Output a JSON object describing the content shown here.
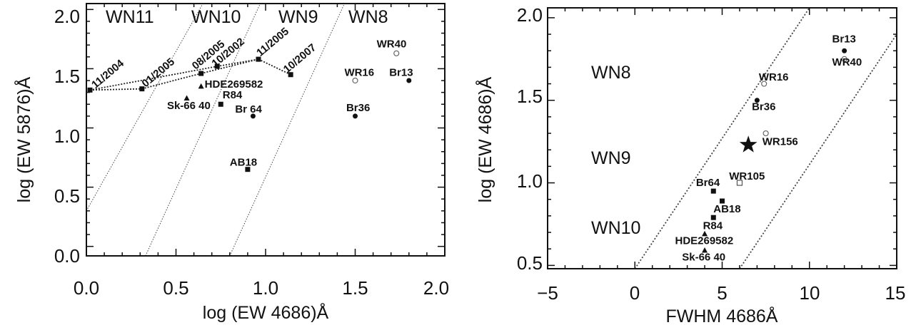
{
  "chart_data": [
    {
      "type": "scatter",
      "title": "",
      "xlabel": "log (EW 4686)Å",
      "ylabel": "log (EW 5876)Å",
      "xlim": [
        0.0,
        2.0
      ],
      "ylim": [
        -0.08,
        2.05
      ],
      "xticks": [
        "0.0",
        "0.5",
        "1.0",
        "1.5",
        "2.0"
      ],
      "yticks": [
        "0.0",
        "0.5",
        "1.0",
        "1.5",
        "2.0"
      ],
      "regions": [
        "WN11",
        "WN10",
        "WN9",
        "WN8"
      ],
      "boundaries": [
        {
          "x1": 0.0,
          "y1": 0.3,
          "x2": 0.65,
          "y2": 2.05
        },
        {
          "x1": 0.33,
          "y1": -0.08,
          "x2": 0.97,
          "y2": 2.05
        },
        {
          "x1": 0.8,
          "y1": -0.08,
          "x2": 1.44,
          "y2": 2.05
        }
      ],
      "points": [
        {
          "label": "WR40",
          "x": 1.73,
          "y": 1.63,
          "marker": "open-circle",
          "lx": 1.62,
          "ly": 1.68
        },
        {
          "label": "Br13",
          "x": 1.8,
          "y": 1.4,
          "marker": "circle",
          "lx": 1.69,
          "ly": 1.44
        },
        {
          "label": "WR16",
          "x": 1.5,
          "y": 1.4,
          "marker": "open-circle",
          "lx": 1.44,
          "ly": 1.44
        },
        {
          "label": "Br36",
          "x": 1.5,
          "y": 1.1,
          "marker": "circle",
          "lx": 1.45,
          "ly": 1.14
        },
        {
          "label": "Br 64",
          "x": 0.93,
          "y": 1.1,
          "marker": "circle",
          "lx": 0.83,
          "ly": 1.13
        },
        {
          "label": "R84",
          "x": 0.75,
          "y": 1.2,
          "marker": "square",
          "lx": 0.76,
          "ly": 1.25
        },
        {
          "label": "Sk-66 40",
          "x": 0.56,
          "y": 1.25,
          "marker": "triangle",
          "lx": 0.45,
          "ly": 1.16
        },
        {
          "label": "HDE269582",
          "x": 0.64,
          "y": 1.35,
          "marker": "triangle",
          "lx": 0.66,
          "ly": 1.34
        },
        {
          "label": "AB18",
          "x": 0.9,
          "y": 0.65,
          "marker": "square",
          "lx": 0.8,
          "ly": 0.68
        }
      ],
      "track": [
        {
          "label": "11/2004",
          "x": 0.02,
          "y": 1.32,
          "marker": "square",
          "lx": 0.05,
          "ly": 1.33
        },
        {
          "label": "01/2005",
          "x": 0.31,
          "y": 1.33,
          "marker": "square",
          "lx": 0.33,
          "ly": 1.34
        },
        {
          "label": "08/2005",
          "x": 0.64,
          "y": 1.46,
          "marker": "square",
          "lx": 0.61,
          "ly": 1.49
        },
        {
          "label": "10/2002",
          "x": 0.73,
          "y": 1.52,
          "marker": "square",
          "lx": 0.72,
          "ly": 1.51
        },
        {
          "label": "11/2005",
          "x": 0.96,
          "y": 1.58,
          "marker": "square",
          "lx": 0.97,
          "ly": 1.6
        },
        {
          "label": "10/2007",
          "x": 1.14,
          "y": 1.45,
          "marker": "x-square",
          "lx": 1.12,
          "ly": 1.46
        }
      ],
      "track_links": [
        [
          0,
          1
        ],
        [
          1,
          2
        ],
        [
          2,
          4
        ],
        [
          0,
          3
        ],
        [
          3,
          4
        ],
        [
          4,
          5
        ]
      ]
    },
    {
      "type": "scatter",
      "title": "",
      "xlabel": "FWHM 4686Å",
      "ylabel": "log (EW 4686)Å",
      "xlim": [
        -5,
        15
      ],
      "ylim": [
        0.48,
        2.06
      ],
      "xticks": [
        "−5",
        "0",
        "5",
        "10",
        "15"
      ],
      "yticks": [
        "0.5",
        "1.0",
        "1.5",
        "2.0"
      ],
      "regions": [
        "WN8",
        "WN9",
        "WN10"
      ],
      "boundaries": [
        {
          "x1": 0.0,
          "y1": 0.48,
          "x2": 10.0,
          "y2": 2.06
        },
        {
          "x1": 6.0,
          "y1": 0.48,
          "x2": 15.0,
          "y2": 1.9
        }
      ],
      "points": [
        {
          "label": "Br13",
          "x": 12.0,
          "y": 1.8,
          "marker": "circle",
          "lx": 11.3,
          "ly": 1.85
        },
        {
          "label": "WR40",
          "x": 12.0,
          "y": 1.75,
          "marker": "open-circle",
          "lx": 11.3,
          "ly": 1.71
        },
        {
          "label": "WR16",
          "x": 7.4,
          "y": 1.6,
          "marker": "open-circle",
          "lx": 7.1,
          "ly": 1.62
        },
        {
          "label": "Br36",
          "x": 7.0,
          "y": 1.5,
          "marker": "circle",
          "lx": 6.7,
          "ly": 1.44
        },
        {
          "label": "WR156",
          "x": 7.5,
          "y": 1.3,
          "marker": "open-circle",
          "lx": 7.3,
          "ly": 1.23
        },
        {
          "label": "",
          "x": 6.5,
          "y": 1.23,
          "marker": "star"
        },
        {
          "label": "WR105",
          "x": 6.0,
          "y": 1.0,
          "marker": "open-square",
          "lx": 5.4,
          "ly": 1.02
        },
        {
          "label": "Br64",
          "x": 4.5,
          "y": 0.95,
          "marker": "square",
          "lx": 3.5,
          "ly": 0.98
        },
        {
          "label": "AB18",
          "x": 5.0,
          "y": 0.89,
          "marker": "square",
          "lx": 4.5,
          "ly": 0.82
        },
        {
          "label": "R84",
          "x": 4.5,
          "y": 0.79,
          "marker": "square",
          "lx": 3.9,
          "ly": 0.72
        },
        {
          "label": "HDE269582",
          "x": 4.0,
          "y": 0.69,
          "marker": "triangle",
          "lx": 2.3,
          "ly": 0.63
        },
        {
          "label": "Sk-66 40",
          "x": 4.0,
          "y": 0.59,
          "marker": "triangle",
          "lx": 2.7,
          "ly": 0.53
        }
      ]
    }
  ]
}
